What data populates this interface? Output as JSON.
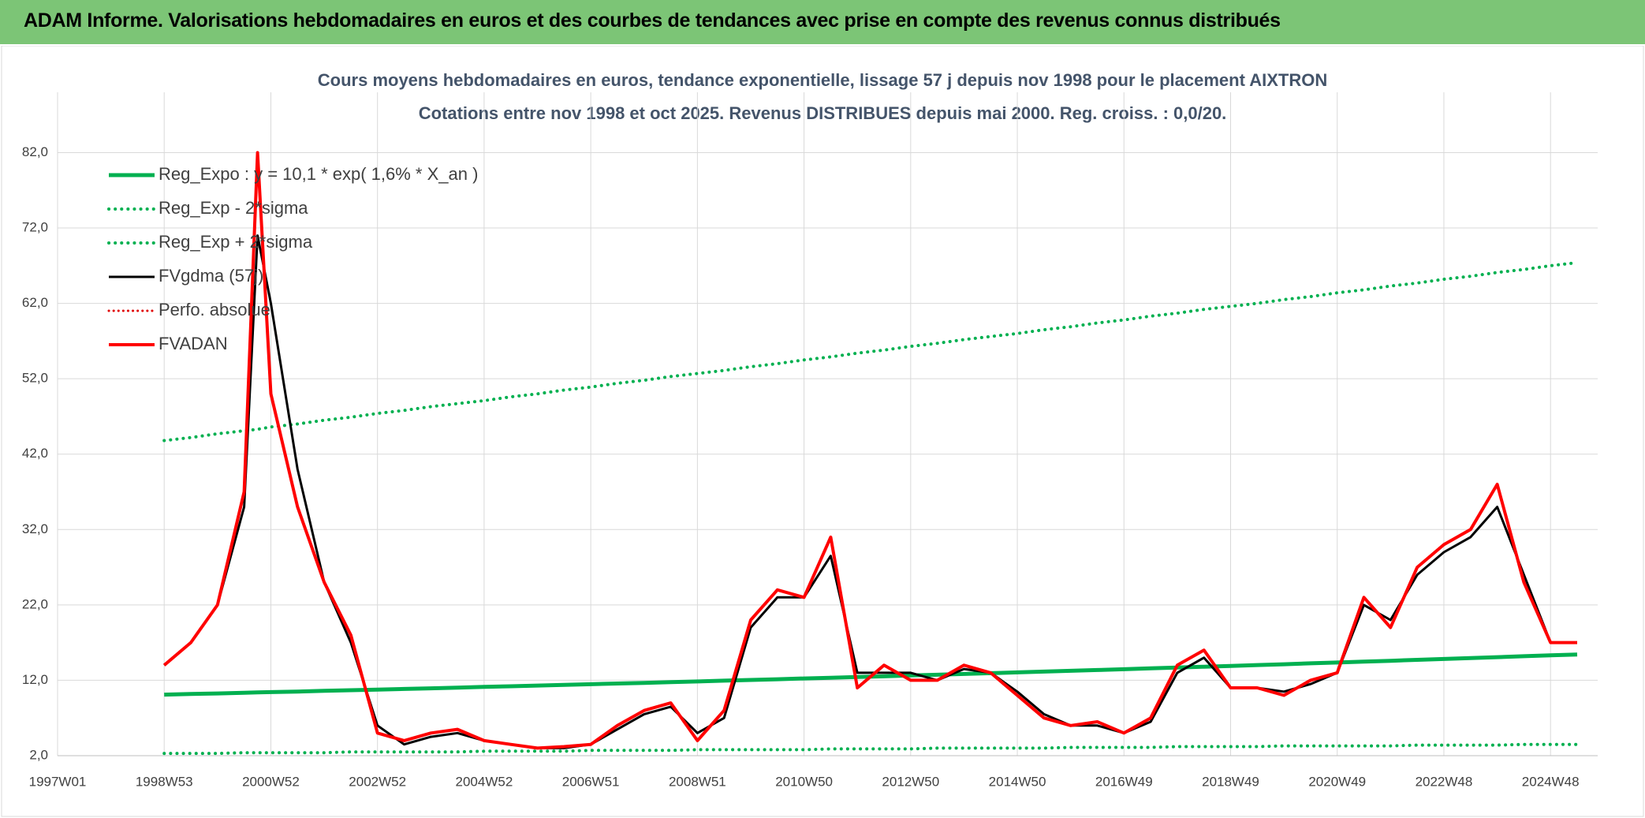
{
  "header": {
    "title": "ADAM Informe. Valorisations hebdomadaires en euros et des courbes de tendances avec prise en compte des revenus connus distribués"
  },
  "chart_data": {
    "type": "line",
    "title": "Cours moyens hebdomadaires en euros, tendance exponentielle, lissage 57 j depuis nov 1998 pour le placement AIXTRON",
    "subtitle": "Cotations entre nov 1998 et oct 2025. Revenus DISTRIBUES depuis mai 2000. Reg. croiss. : 0,0/20.",
    "x": [
      104,
      130,
      156,
      182,
      195,
      208,
      234,
      260,
      286,
      312,
      338,
      364,
      390,
      416,
      442,
      468,
      494,
      520,
      546,
      572,
      598,
      624,
      650,
      676,
      702,
      728,
      754,
      780,
      806,
      832,
      858,
      884,
      910,
      936,
      962,
      988,
      1014,
      1040,
      1066,
      1092,
      1118,
      1144,
      1170,
      1196,
      1222,
      1248,
      1274,
      1300,
      1326,
      1352,
      1378,
      1404,
      1430,
      1456,
      1482
    ],
    "xlim": [
      0,
      1502
    ],
    "xticks": [
      {
        "value": 0,
        "label": "1997W01"
      },
      {
        "value": 104,
        "label": "1998W53"
      },
      {
        "value": 208,
        "label": "2000W52"
      },
      {
        "value": 312,
        "label": "2002W52"
      },
      {
        "value": 416,
        "label": "2004W52"
      },
      {
        "value": 520,
        "label": "2006W51"
      },
      {
        "value": 624,
        "label": "2008W51"
      },
      {
        "value": 728,
        "label": "2010W50"
      },
      {
        "value": 832,
        "label": "2012W50"
      },
      {
        "value": 936,
        "label": "2014W50"
      },
      {
        "value": 1040,
        "label": "2016W49"
      },
      {
        "value": 1144,
        "label": "2018W49"
      },
      {
        "value": 1248,
        "label": "2020W49"
      },
      {
        "value": 1352,
        "label": "2022W48"
      },
      {
        "value": 1456,
        "label": "2024W48"
      }
    ],
    "ylim": [
      2,
      90
    ],
    "yticks": [
      {
        "value": 2,
        "label": "2,0"
      },
      {
        "value": 12,
        "label": "12,0"
      },
      {
        "value": 22,
        "label": "22,0"
      },
      {
        "value": 32,
        "label": "32,0"
      },
      {
        "value": 42,
        "label": "42,0"
      },
      {
        "value": 52,
        "label": "52,0"
      },
      {
        "value": 62,
        "label": "62,0"
      },
      {
        "value": 72,
        "label": "72,0"
      },
      {
        "value": 82,
        "label": "82,0"
      }
    ],
    "grid": true,
    "legend": "upper left",
    "series": [
      {
        "name": "Reg_Expo : y = 10,1 * exp( 1,6% *  X_an )",
        "color": "#00b050",
        "style": "solid",
        "width": 5,
        "values": [
          10.1,
          10.18,
          10.26,
          10.35,
          10.39,
          10.43,
          10.51,
          10.6,
          10.68,
          10.77,
          10.85,
          10.94,
          11.03,
          11.12,
          11.21,
          11.3,
          11.39,
          11.48,
          11.57,
          11.66,
          11.76,
          11.85,
          11.95,
          12.04,
          12.14,
          12.24,
          12.34,
          12.43,
          12.53,
          12.64,
          12.74,
          12.84,
          12.94,
          13.05,
          13.15,
          13.26,
          13.36,
          13.47,
          13.58,
          13.69,
          13.8,
          13.91,
          14.02,
          14.13,
          14.25,
          14.36,
          14.48,
          14.59,
          14.71,
          14.83,
          14.95,
          15.07,
          15.19,
          15.31,
          15.43
        ]
      },
      {
        "name": "Reg_Exp - 2*sigma",
        "color": "#00b050",
        "style": "dotted",
        "width": 4,
        "values": [
          2.3,
          2.3,
          2.3,
          2.4,
          2.4,
          2.4,
          2.4,
          2.4,
          2.5,
          2.5,
          2.5,
          2.5,
          2.5,
          2.6,
          2.6,
          2.6,
          2.6,
          2.7,
          2.7,
          2.7,
          2.7,
          2.8,
          2.8,
          2.8,
          2.8,
          2.8,
          2.9,
          2.9,
          2.9,
          2.9,
          3.0,
          3.0,
          3.0,
          3.0,
          3.0,
          3.1,
          3.1,
          3.1,
          3.1,
          3.2,
          3.2,
          3.2,
          3.2,
          3.3,
          3.3,
          3.3,
          3.3,
          3.3,
          3.4,
          3.4,
          3.4,
          3.4,
          3.5,
          3.5,
          3.5
        ]
      },
      {
        "name": "Reg_Exp + 2*sigma",
        "color": "#00b050",
        "style": "dotted",
        "width": 4,
        "values": [
          43.8,
          44.2,
          44.7,
          45.1,
          45.3,
          45.6,
          46.0,
          46.5,
          46.9,
          47.4,
          47.8,
          48.3,
          48.7,
          49.1,
          49.6,
          50.0,
          50.5,
          50.9,
          51.4,
          51.8,
          52.3,
          52.7,
          53.1,
          53.6,
          54.0,
          54.5,
          54.9,
          55.4,
          55.8,
          56.3,
          56.7,
          57.2,
          57.6,
          58.0,
          58.5,
          58.9,
          59.4,
          59.8,
          60.3,
          60.7,
          61.2,
          61.6,
          62.0,
          62.5,
          62.9,
          63.4,
          63.8,
          64.3,
          64.7,
          65.2,
          65.6,
          66.1,
          66.5,
          67.0,
          67.4
        ]
      },
      {
        "name": "FVgdma (57j)",
        "color": "#000000",
        "style": "solid",
        "width": 3,
        "values": [
          14,
          17,
          22,
          35,
          71,
          62,
          40,
          25,
          17,
          6,
          3.5,
          4.5,
          5,
          4,
          3.5,
          3,
          3,
          3.5,
          5.5,
          7.5,
          8.5,
          5,
          7,
          19,
          23,
          23,
          28.5,
          13,
          13,
          13,
          12,
          13.5,
          13,
          10.5,
          7.5,
          6,
          6,
          5,
          6.5,
          13,
          15,
          11,
          11,
          10.5,
          11.5,
          13,
          22,
          20,
          26,
          29,
          31,
          35,
          26,
          17,
          17
        ]
      },
      {
        "name": "Perfo. absolue",
        "color": "#e00000",
        "style": "dotted",
        "width": 3,
        "values": [
          null,
          null,
          null,
          null,
          null,
          null,
          null,
          null,
          null,
          null,
          null,
          null,
          null,
          null,
          null,
          null,
          null,
          null,
          null,
          null,
          null,
          null,
          null,
          null,
          null,
          null,
          null,
          null,
          null,
          null,
          null,
          null,
          null,
          null,
          null,
          null,
          null,
          null,
          null,
          null,
          null,
          null,
          null,
          null,
          null,
          null,
          null,
          null,
          null,
          null,
          null,
          null,
          null,
          null,
          null
        ]
      },
      {
        "name": "FVADAN",
        "color": "#ff0000",
        "style": "solid",
        "width": 4,
        "values": [
          14,
          17,
          22,
          37,
          82,
          50,
          35,
          25,
          18,
          5,
          4,
          5,
          5.5,
          4,
          3.5,
          3,
          3.2,
          3.5,
          6,
          8,
          9,
          4,
          8,
          20,
          24,
          23,
          31,
          11,
          14,
          12,
          12,
          14,
          13,
          10,
          7,
          6,
          6.5,
          5,
          7,
          14,
          16,
          11,
          11,
          10,
          12,
          13,
          23,
          19,
          27,
          30,
          32,
          38,
          25,
          17,
          17
        ]
      }
    ]
  }
}
